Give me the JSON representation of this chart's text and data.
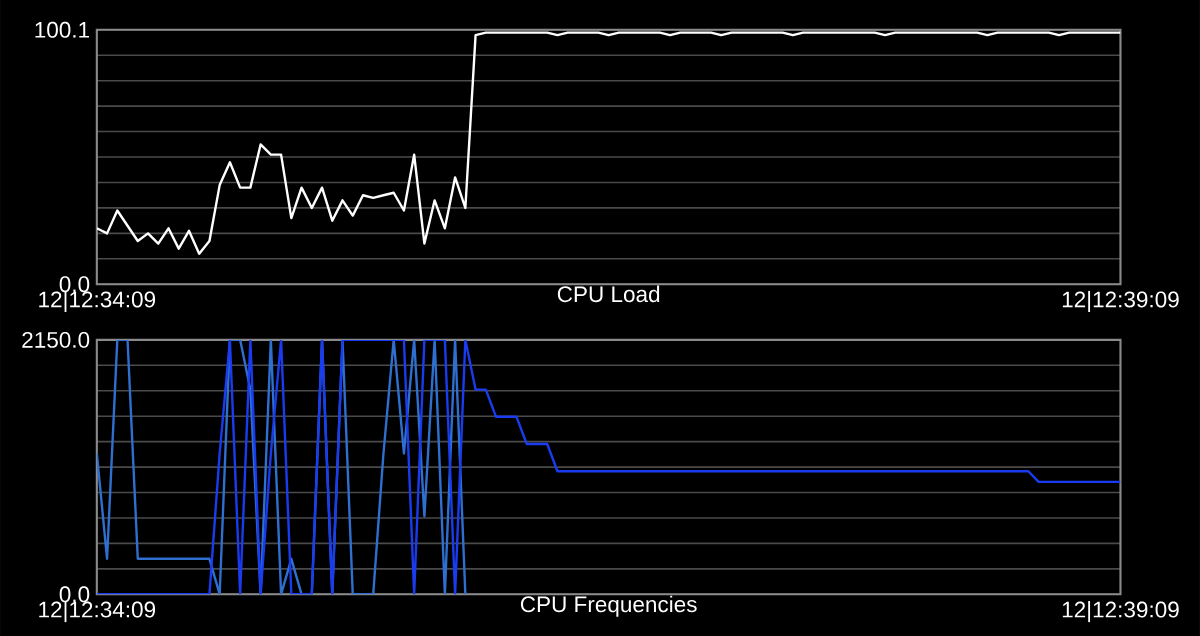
{
  "chart_data": [
    {
      "type": "line",
      "title": "CPU Load",
      "grid": "y",
      "categories": [
        "12|12:34:09",
        null,
        null,
        null,
        null,
        null,
        null,
        null,
        null,
        null,
        null,
        null,
        null,
        null,
        null,
        null,
        null,
        null,
        null,
        null,
        null,
        null,
        null,
        null,
        null,
        null,
        null,
        null,
        null,
        null,
        null,
        null,
        null,
        null,
        null,
        null,
        null,
        null,
        null,
        null,
        null,
        null,
        null,
        null,
        null,
        null,
        null,
        null,
        null,
        null,
        null,
        null,
        null,
        null,
        null,
        null,
        null,
        null,
        null,
        null,
        null,
        null,
        null,
        null,
        null,
        null,
        null,
        null,
        null,
        null,
        null,
        null,
        null,
        null,
        null,
        null,
        null,
        null,
        null,
        null,
        null,
        null,
        null,
        null,
        null,
        null,
        null,
        null,
        null,
        null,
        null,
        null,
        null,
        null,
        null,
        null,
        null,
        null,
        null,
        null,
        "12|12:39:09"
      ],
      "ylim": [
        0,
        100.1
      ],
      "yticks": [
        {
          "value": 0,
          "label": "0.0"
        },
        {
          "value": 10.01,
          "label": null
        },
        {
          "value": 20.02,
          "label": null
        },
        {
          "value": 30.03,
          "label": null
        },
        {
          "value": 40.04,
          "label": null
        },
        {
          "value": 50.05,
          "label": null
        },
        {
          "value": 60.06,
          "label": null
        },
        {
          "value": 70.07,
          "label": null
        },
        {
          "value": 80.08,
          "label": null
        },
        {
          "value": 90.09,
          "label": null
        },
        {
          "value": 100.1,
          "label": "100.1"
        }
      ],
      "series": [
        {
          "color": "#ffffff",
          "values": [
            22,
            20,
            29,
            23,
            17,
            20,
            16,
            22,
            14,
            21,
            12,
            17,
            39,
            48,
            38,
            38,
            55,
            51,
            51,
            26,
            38,
            30,
            38,
            25,
            33,
            27,
            35,
            34,
            35,
            36,
            29,
            51,
            16,
            33,
            22,
            42,
            30,
            98,
            99,
            99,
            99,
            99,
            99,
            99,
            99,
            98,
            99,
            99,
            99,
            99,
            98,
            99,
            99,
            99,
            99,
            99,
            98,
            99,
            99,
            99,
            99,
            98,
            99,
            99,
            99,
            99,
            99,
            99,
            98,
            99,
            99,
            99,
            99,
            99,
            99,
            99,
            99,
            98,
            99,
            99,
            99,
            99,
            99,
            99,
            99,
            99,
            99,
            98,
            99,
            99,
            99,
            99,
            99,
            99,
            98,
            99,
            99,
            99,
            99,
            99,
            99
          ]
        }
      ]
    },
    {
      "type": "line",
      "title": "CPU Frequencies",
      "grid": "y",
      "categories": [
        "12|12:34:09",
        null,
        null,
        null,
        null,
        null,
        null,
        null,
        null,
        null,
        null,
        null,
        null,
        null,
        null,
        null,
        null,
        null,
        null,
        null,
        null,
        null,
        null,
        null,
        null,
        null,
        null,
        null,
        null,
        null,
        null,
        null,
        null,
        null,
        null,
        null,
        null,
        null,
        null,
        null,
        null,
        null,
        null,
        null,
        null,
        null,
        null,
        null,
        null,
        null,
        null,
        null,
        null,
        null,
        null,
        null,
        null,
        null,
        null,
        null,
        null,
        null,
        null,
        null,
        null,
        null,
        null,
        null,
        null,
        null,
        null,
        null,
        null,
        null,
        null,
        null,
        null,
        null,
        null,
        null,
        null,
        null,
        null,
        null,
        null,
        null,
        null,
        null,
        null,
        null,
        null,
        null,
        null,
        null,
        null,
        null,
        null,
        null,
        null,
        null,
        "12|12:39:09"
      ],
      "ylim": [
        0,
        2150
      ],
      "yticks": [
        {
          "value": 0,
          "label": "0.0"
        },
        {
          "value": 215,
          "label": null
        },
        {
          "value": 430,
          "label": null
        },
        {
          "value": 645,
          "label": null
        },
        {
          "value": 860,
          "label": null
        },
        {
          "value": 1075,
          "label": null
        },
        {
          "value": 1290,
          "label": null
        },
        {
          "value": 1505,
          "label": null
        },
        {
          "value": 1720,
          "label": null
        },
        {
          "value": 1935,
          "label": null
        },
        {
          "value": 2150,
          "label": "2150.0"
        }
      ],
      "series": [
        {
          "color": "#2e6fd0",
          "values": [
            1190,
            300,
            2150,
            2150,
            300,
            300,
            300,
            300,
            300,
            300,
            300,
            300,
            0,
            2150,
            2150,
            1730,
            0,
            2150,
            0,
            300,
            0,
            0,
            2150,
            0,
            2150,
            0,
            0,
            0,
            1190,
            2150,
            1190,
            2150,
            660,
            2150,
            0,
            2150,
            0,
            null,
            null,
            null,
            null,
            null,
            null,
            null,
            null,
            null,
            null,
            null,
            null,
            null,
            null,
            null,
            null,
            null,
            null,
            null,
            null,
            null,
            null,
            null,
            null,
            null,
            null,
            null,
            null,
            null,
            null,
            null,
            null,
            null,
            null,
            null,
            null,
            null,
            null,
            null,
            null,
            null,
            null,
            null,
            null,
            null,
            null,
            null,
            null,
            null,
            null,
            null,
            null,
            null,
            null,
            null,
            null,
            null,
            null,
            null,
            null,
            null,
            null,
            null,
            null
          ]
        },
        {
          "color": "#1a3cf0",
          "values": [
            0,
            0,
            0,
            0,
            0,
            0,
            0,
            0,
            0,
            0,
            0,
            0,
            1190,
            2150,
            0,
            2150,
            0,
            1190,
            2150,
            0,
            0,
            0,
            2150,
            0,
            2150,
            2150,
            2150,
            2150,
            2150,
            2150,
            2150,
            0,
            2150,
            2150,
            2150,
            0,
            2150,
            1730,
            1730,
            1500,
            1500,
            1500,
            1270,
            1270,
            1270,
            1040,
            1040,
            1040,
            1040,
            1040,
            1040,
            1040,
            1040,
            1040,
            1040,
            1040,
            1040,
            1040,
            1040,
            1040,
            1040,
            1040,
            1040,
            1040,
            1040,
            1040,
            1040,
            1040,
            1040,
            1040,
            1040,
            1040,
            1040,
            1040,
            1040,
            1040,
            1040,
            1040,
            1040,
            1040,
            1040,
            1040,
            1040,
            1040,
            1040,
            1040,
            1040,
            1040,
            1040,
            1040,
            1040,
            1040,
            950,
            950,
            950,
            950,
            950,
            950,
            950,
            950,
            950
          ]
        }
      ]
    }
  ]
}
